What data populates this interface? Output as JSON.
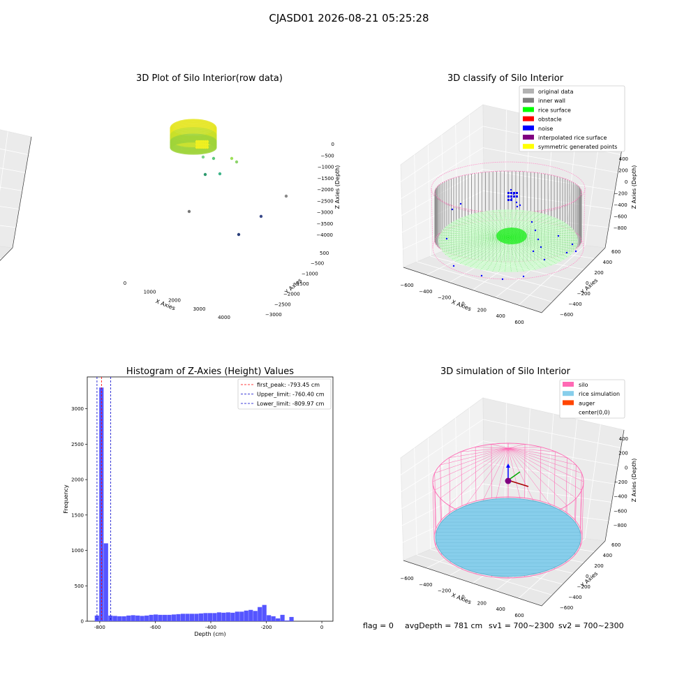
{
  "figure": {
    "suptitle": "CJASD01 2026-08-21 05:25:28",
    "footer": {
      "flag": "flag = 0",
      "avg_depth": "avgDepth = 781 cm",
      "sv1": "sv1 = 700~2300",
      "sv2": "sv2 = 700~2300"
    }
  },
  "chart_data": [
    {
      "id": "raw",
      "type": "scatter",
      "title": "3D Plot of Silo Interior(row data)",
      "xlabel": "X Axies",
      "ylabel": "Y Axies",
      "zlabel": "Z Axies (Depth)",
      "x_ticks": [
        "0",
        "1000",
        "2000",
        "3000",
        "4000"
      ],
      "y_ticks": [
        "500",
        "−500",
        "−1000",
        "−1500",
        "−2000",
        "−2500",
        "−3000"
      ],
      "z_ticks": [
        "0",
        "−500",
        "−1000",
        "−1500",
        "−2000",
        "−2500",
        "−3000",
        "−3500",
        "−4000"
      ],
      "outlier_points": [
        {
          "x": 2400,
          "y": -900,
          "z": -600,
          "color": "#9ee05a"
        },
        {
          "x": 2600,
          "y": -800,
          "z": -700,
          "color": "#8cd46a"
        },
        {
          "x": 1800,
          "y": -1200,
          "z": -1200,
          "color": "#5cc97a"
        },
        {
          "x": 2200,
          "y": -1100,
          "z": -1300,
          "color": "#7ad48a"
        },
        {
          "x": 3800,
          "y": -1800,
          "z": -2300,
          "color": "#3fb58a"
        },
        {
          "x": 800,
          "y": -900,
          "z": -2600,
          "color": "#2e9a6e"
        },
        {
          "x": 3200,
          "y": -1800,
          "z": -3200,
          "color": "#888888"
        },
        {
          "x": 3000,
          "y": -2000,
          "z": -3800,
          "color": "#777777"
        },
        {
          "x": 2000,
          "y": -2200,
          "z": -4000,
          "color": "#3a4a8a"
        },
        {
          "x": 1200,
          "y": -2400,
          "z": -4200,
          "color": "#2a3f7a"
        }
      ]
    },
    {
      "id": "classify",
      "type": "scatter",
      "title": "3D classify of Silo Interior",
      "xlabel": "X Axies",
      "ylabel": "Y Axies",
      "zlabel": "Z Axies (Depth)",
      "x_ticks": [
        "−600",
        "−400",
        "−200",
        "0",
        "200",
        "400",
        "600"
      ],
      "y_ticks": [
        "600",
        "400",
        "200",
        "0",
        "−200",
        "−400",
        "−600"
      ],
      "z_ticks": [
        "400",
        "200",
        "0",
        "−200",
        "−400",
        "−600",
        "−800"
      ],
      "legend": [
        {
          "label": "original data",
          "color": "#b3b3b3"
        },
        {
          "label": "inner wall",
          "color": "#808080"
        },
        {
          "label": "rice surface",
          "color": "#00ff00"
        },
        {
          "label": "obstacle",
          "color": "#ff0000"
        },
        {
          "label": "noise",
          "color": "#0000ff"
        },
        {
          "label": "interpolated rice surface",
          "color": "#800080"
        },
        {
          "label": "symmetric generated points",
          "color": "#ffff00"
        }
      ]
    },
    {
      "id": "hist",
      "type": "bar",
      "title": "Histogram of Z-Axies (Height) Values",
      "xlabel": "Depth (cm)",
      "ylabel": "Frequency",
      "xlim": [
        -845,
        40
      ],
      "ylim": [
        0,
        3450
      ],
      "x_ticks": [
        -800,
        -600,
        -400,
        -200,
        0
      ],
      "y_ticks": [
        0,
        500,
        1000,
        1500,
        2000,
        2500,
        3000
      ],
      "bar_color": "#5555ff",
      "bin_start": -818,
      "bin_width": 16.3,
      "counts": [
        80,
        3300,
        1100,
        80,
        75,
        70,
        70,
        80,
        85,
        80,
        75,
        80,
        90,
        95,
        90,
        90,
        90,
        95,
        100,
        105,
        105,
        105,
        105,
        110,
        115,
        115,
        115,
        125,
        120,
        125,
        120,
        135,
        135,
        150,
        160,
        145,
        200,
        230,
        85,
        70,
        40,
        90,
        10,
        60
      ],
      "vlines": [
        {
          "label": "first_peak: -793.45 cm",
          "x": -793.45,
          "color": "#ff0000"
        },
        {
          "label": "Upper_limit: -760.40 cm",
          "x": -760.4,
          "color": "#0000cc"
        },
        {
          "label": "Lower_limit: -809.97 cm",
          "x": -809.97,
          "color": "#0000cc"
        }
      ]
    },
    {
      "id": "sim",
      "type": "scatter",
      "title": "3D simulation of Silo Interior",
      "xlabel": "X Axies",
      "ylabel": "Y Axies",
      "zlabel": "Z Axies (Depth)",
      "x_ticks": [
        "−600",
        "−400",
        "−200",
        "0",
        "200",
        "400",
        "600"
      ],
      "y_ticks": [
        "600",
        "400",
        "200",
        "0",
        "−200",
        "−400",
        "−600"
      ],
      "z_ticks": [
        "400",
        "200",
        "0",
        "−200",
        "−400",
        "−600",
        "−800"
      ],
      "legend": [
        {
          "label": "silo",
          "color": "#ff69b4"
        },
        {
          "label": "rice simulation",
          "color": "#87ceeb"
        },
        {
          "label": "auger",
          "color": "#ff4500"
        },
        {
          "label": "center(0,0)",
          "color": "#ffffff"
        }
      ]
    }
  ]
}
